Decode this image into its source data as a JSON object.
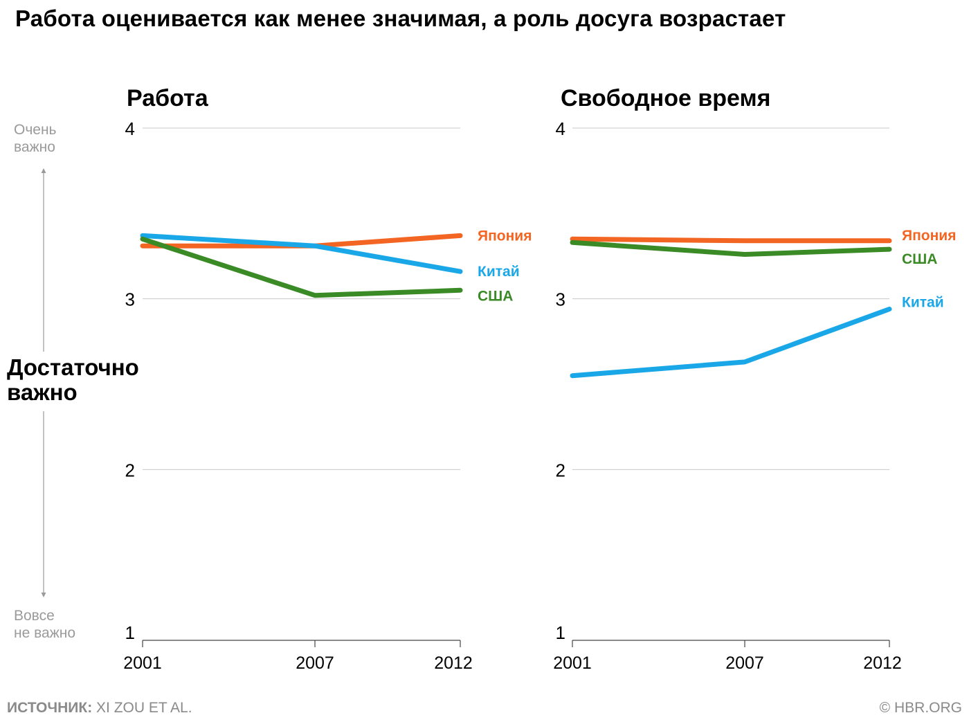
{
  "title": "Работа оценивается как менее значимая, а роль досуга возрастает",
  "scale": {
    "top": [
      "Очень",
      "важно"
    ],
    "middle": [
      "Достаточно",
      "важно"
    ],
    "bottom": [
      "Вовсе",
      "не важно"
    ]
  },
  "footer": {
    "source_label": "ИСТОЧНИК:",
    "source_text": " XI ZOU ET AL.",
    "copyright": "© HBR.ORG"
  },
  "colors": {
    "japan": "#f26522",
    "china": "#1aa7e8",
    "usa": "#3a8a25",
    "grid": "#c8c8c8",
    "axis_note": "#9a9a9a"
  },
  "chart_data": [
    {
      "type": "line",
      "title": "Работа",
      "x": [
        "2001",
        "2007",
        "2012"
      ],
      "ylim": [
        1,
        4
      ],
      "yticks": [
        1,
        2,
        3,
        4
      ],
      "series": [
        {
          "name": "Япония",
          "color_key": "japan",
          "values": [
            3.31,
            3.31,
            3.37
          ]
        },
        {
          "name": "Китай",
          "color_key": "china",
          "values": [
            3.37,
            3.31,
            3.16
          ]
        },
        {
          "name": "США",
          "color_key": "usa",
          "values": [
            3.35,
            3.02,
            3.05
          ]
        }
      ]
    },
    {
      "type": "line",
      "title": "Свободное время",
      "x": [
        "2001",
        "2007",
        "2012"
      ],
      "ylim": [
        1,
        4
      ],
      "yticks": [
        1,
        2,
        3,
        4
      ],
      "series": [
        {
          "name": "Япония",
          "color_key": "japan",
          "values": [
            3.35,
            3.34,
            3.34
          ]
        },
        {
          "name": "США",
          "color_key": "usa",
          "values": [
            3.33,
            3.26,
            3.29
          ]
        },
        {
          "name": "Китай",
          "color_key": "china",
          "values": [
            2.55,
            2.63,
            2.94
          ]
        }
      ]
    }
  ]
}
